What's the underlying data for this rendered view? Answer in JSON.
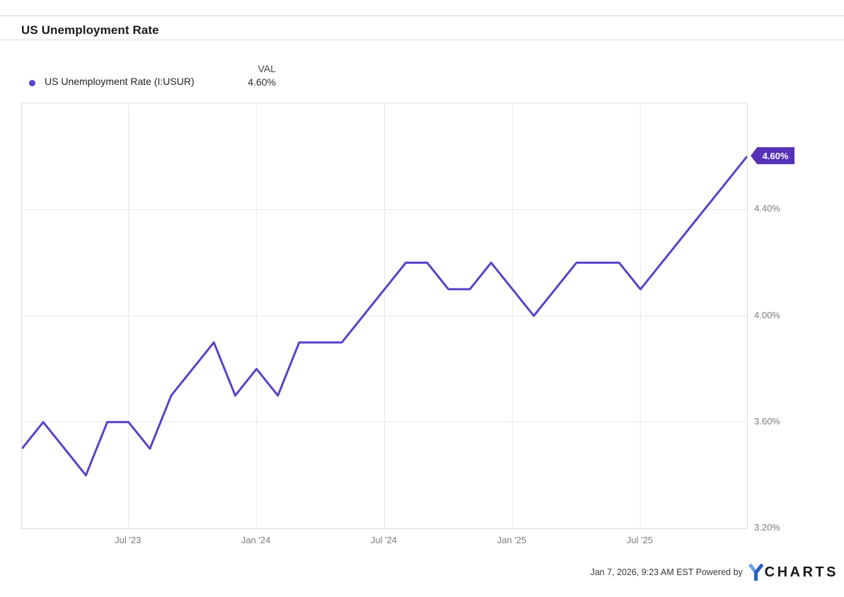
{
  "header": {
    "title": "US Unemployment Rate"
  },
  "legend": {
    "series_label": "US Unemployment Rate (I:USUR)",
    "val_header": "VAL",
    "val_value": "4.60%"
  },
  "chart_data": {
    "type": "line",
    "title": "US Unemployment Rate",
    "series_name": "US Unemployment Rate (I:USUR)",
    "unit": "%",
    "x": [
      "Feb '23",
      "Mar '23",
      "Apr '23",
      "May '23",
      "Jun '23",
      "Jul '23",
      "Aug '23",
      "Sep '23",
      "Oct '23",
      "Nov '23",
      "Dec '23",
      "Jan '24",
      "Feb '24",
      "Mar '24",
      "Apr '24",
      "May '24",
      "Jun '24",
      "Jul '24",
      "Aug '24",
      "Sep '24",
      "Oct '24",
      "Nov '24",
      "Dec '24",
      "Jan '25",
      "Feb '25",
      "Mar '25",
      "Apr '25",
      "May '25",
      "Jun '25",
      "Jul '25",
      "Aug '25",
      "Sep '25",
      "Oct '25",
      "Nov '25",
      "Dec '25"
    ],
    "values": [
      3.5,
      3.6,
      3.5,
      3.4,
      3.6,
      3.6,
      3.5,
      3.7,
      3.8,
      3.9,
      3.7,
      3.8,
      3.7,
      3.9,
      3.9,
      3.9,
      4.0,
      4.1,
      4.2,
      4.2,
      4.1,
      4.1,
      4.2,
      4.1,
      4.0,
      4.1,
      4.2,
      4.2,
      4.2,
      4.1,
      4.2,
      4.3,
      4.4,
      4.5,
      4.6
    ],
    "last_value_label": "4.60%",
    "ylim": [
      3.2,
      4.8
    ],
    "y_ticks": [
      {
        "label": "4.40%",
        "value": 4.4
      },
      {
        "label": "4.00%",
        "value": 4.0
      },
      {
        "label": "3.60%",
        "value": 3.6
      },
      {
        "label": "3.20%",
        "value": 3.2
      }
    ],
    "x_ticks": [
      {
        "label": "Jul '23",
        "index": 5
      },
      {
        "label": "Jan '24",
        "index": 11
      },
      {
        "label": "Jul '24",
        "index": 17
      },
      {
        "label": "Jan '25",
        "index": 23
      },
      {
        "label": "Jul '25",
        "index": 29
      }
    ],
    "grid": true,
    "legend_position": "top-left",
    "line_color": "#5b40c8",
    "badge_color": "#5632b8",
    "grid_color": "#e7e7e7",
    "dot_color": "#5a3fd0"
  },
  "footer": {
    "timestamp_powered": "Jan 7, 2026, 9:23 AM EST Powered by",
    "logo_y": "Y",
    "logo_text": "CHARTS"
  }
}
